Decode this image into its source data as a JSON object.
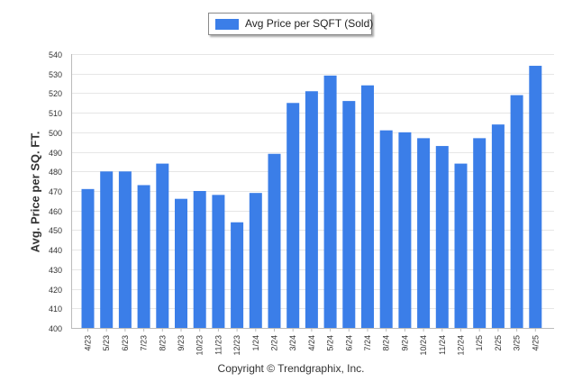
{
  "chart_data": {
    "type": "bar",
    "categories": [
      "4/23",
      "5/23",
      "6/23",
      "7/23",
      "8/23",
      "9/23",
      "10/23",
      "11/23",
      "12/23",
      "1/24",
      "2/24",
      "3/24",
      "4/24",
      "5/24",
      "6/24",
      "7/24",
      "8/24",
      "9/24",
      "10/24",
      "11/24",
      "12/24",
      "1/25",
      "2/25",
      "3/25",
      "4/25"
    ],
    "series": [
      {
        "name": "Avg Price per SQFT (Sold)",
        "values": [
          471,
          480,
          480,
          473,
          484,
          466,
          470,
          468,
          454,
          469,
          489,
          515,
          521,
          529,
          516,
          524,
          501,
          500,
          497,
          493,
          484,
          497,
          504,
          519,
          534
        ]
      }
    ],
    "ylabel": "Avg. Price per SQ. FT.",
    "xlabel": "",
    "ylim": [
      400,
      540
    ],
    "yticks": [
      400,
      410,
      420,
      430,
      440,
      450,
      460,
      470,
      480,
      490,
      500,
      510,
      520,
      530,
      540
    ],
    "grid": true,
    "legend_position": "top-center",
    "bar_color": "#3b7ee8"
  },
  "footer": {
    "copyright": "Copyright © Trendgraphix, Inc."
  }
}
